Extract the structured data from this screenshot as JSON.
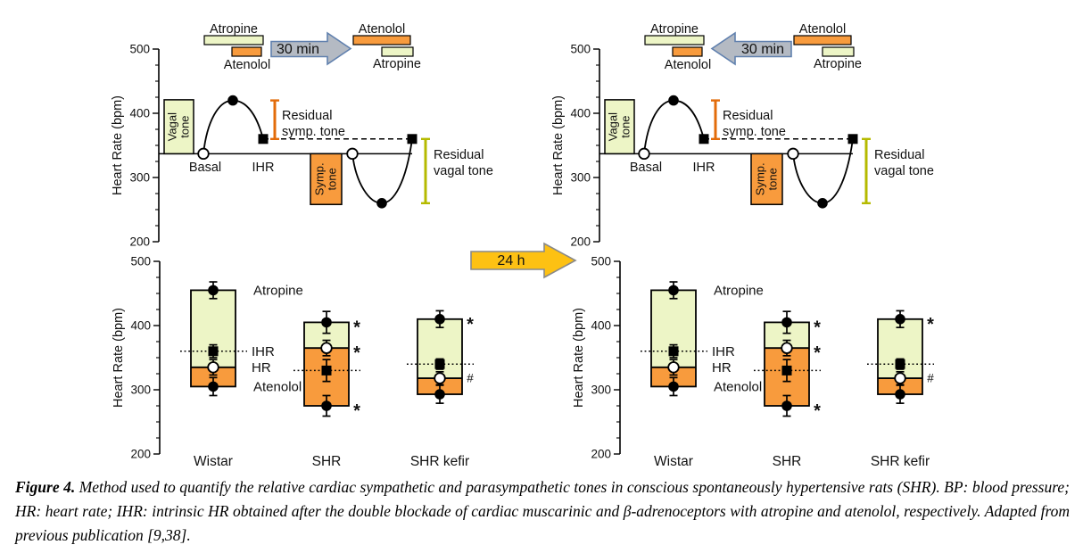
{
  "colors": {
    "atropine_fill": "#edf5c6",
    "atenolol_fill": "#f89b3d",
    "arrow_30min_fill": "#b4bac3",
    "arrow_30min_border": "#6080ae",
    "arrow_24h_fill": "#fdc113",
    "arrow_24h_border": "#898989",
    "residual_symp_bar": "#e36c0a",
    "residual_vagal_bar": "#b5ba00",
    "hash_mark": "#808080"
  },
  "arrow_24h": {
    "label": "24 h"
  },
  "caption": {
    "label": "Figure 4.",
    "text": "Method used to quantify the relative cardiac sympathetic and parasympathetic tones in conscious spontaneously hypertensive rats (SHR). BP: blood pressure; HR: heart rate; IHR: intrinsic HR obtained after the double blockade of cardiac muscarinic and β-adrenoceptors with atropine and atenolol, respectively. Adapted from previous publication [9,38]."
  },
  "chart_data": [
    {
      "panel": "top-left",
      "type": "protocol-diagram",
      "ylabel": "Heart Rate (bpm)",
      "ylim": [
        200,
        500
      ],
      "yticks": [
        200,
        300,
        400,
        500
      ],
      "ytick_minor_step": 25,
      "legend": {
        "before": {
          "top": {
            "label": "Atropine",
            "drug": "atropine"
          },
          "bottom": {
            "label": "Atenolol",
            "drug": "atenolol"
          }
        },
        "arrow": {
          "label": "30 min",
          "direction": "right"
        },
        "after": {
          "top": {
            "label": "Atenolol",
            "drug": "atenolol"
          },
          "bottom": {
            "label": "Atropine",
            "drug": "atropine"
          }
        }
      },
      "values": {
        "basal": 337,
        "atropine_peak": 420,
        "ihr": 360,
        "atenolol_trough": 260,
        "vagal_box_top": 421,
        "symp_box_bottom": 258
      },
      "annotations": {
        "vagal_box": "Vagal tone",
        "symp_box": "Symp. tone",
        "basal": "Basal",
        "ihr": "IHR",
        "residual_symp": [
          "Residual",
          "symp. tone"
        ],
        "residual_vagal": [
          "Residual",
          "vagal tone"
        ]
      }
    },
    {
      "panel": "top-right",
      "type": "protocol-diagram",
      "ylabel": "Heart Rate (bpm)",
      "ylim": [
        200,
        500
      ],
      "yticks": [
        200,
        300,
        400,
        500
      ],
      "ytick_minor_step": 25,
      "legend": {
        "before": {
          "top": {
            "label": "Atropine",
            "drug": "atropine"
          },
          "bottom": {
            "label": "Atenolol",
            "drug": "atenolol"
          }
        },
        "arrow": {
          "label": "30 min",
          "direction": "left"
        },
        "after": {
          "top": {
            "label": "Atenolol",
            "drug": "atenolol"
          },
          "bottom": {
            "label": "Atropine",
            "drug": "atropine"
          }
        }
      },
      "values": {
        "basal": 337,
        "atropine_peak": 420,
        "ihr": 360,
        "atenolol_trough": 260,
        "vagal_box_top": 421,
        "symp_box_bottom": 258
      },
      "annotations": {
        "vagal_box": "Vagal tone",
        "symp_box": "Symp. tone",
        "basal": "Basal",
        "ihr": "IHR",
        "residual_symp": [
          "Residual",
          "symp. tone"
        ],
        "residual_vagal": [
          "Residual",
          "vagal tone"
        ]
      }
    },
    {
      "panel": "bottom-left",
      "type": "range-bar",
      "ylabel": "Heart Rate (bpm)",
      "ylim": [
        200,
        500
      ],
      "yticks": [
        200,
        300,
        400,
        500
      ],
      "ytick_minor_step": 25,
      "categories": [
        "Wistar",
        "SHR",
        "SHR kefir"
      ],
      "series": {
        "atropine": {
          "label": "Atropine",
          "values": [
            455,
            405,
            410
          ],
          "errors": [
            13,
            17,
            13
          ],
          "marks": [
            "",
            "*",
            "*"
          ]
        },
        "ihr": {
          "label": "IHR",
          "values": [
            360,
            330,
            340
          ],
          "errors": [
            10,
            17,
            8
          ],
          "marks": [
            "",
            "",
            ""
          ]
        },
        "hr": {
          "label": "HR",
          "values": [
            335,
            365,
            318
          ],
          "errors": [
            12,
            12,
            10
          ],
          "marks": [
            "",
            "*",
            "#"
          ]
        },
        "atenolol": {
          "label": "Atenolol",
          "values": [
            305,
            275,
            293
          ],
          "errors": [
            14,
            16,
            14
          ],
          "marks": [
            "",
            "*",
            ""
          ]
        }
      }
    },
    {
      "panel": "bottom-right",
      "type": "range-bar",
      "ylabel": "Heart Rate (bpm)",
      "ylim": [
        200,
        500
      ],
      "yticks": [
        200,
        300,
        400,
        500
      ],
      "ytick_minor_step": 25,
      "categories": [
        "Wistar",
        "SHR",
        "SHR kefir"
      ],
      "series": {
        "atropine": {
          "label": "Atropine",
          "values": [
            455,
            405,
            410
          ],
          "errors": [
            13,
            17,
            13
          ],
          "marks": [
            "",
            "*",
            "*"
          ]
        },
        "ihr": {
          "label": "IHR",
          "values": [
            360,
            330,
            340
          ],
          "errors": [
            10,
            17,
            8
          ],
          "marks": [
            "",
            "",
            ""
          ]
        },
        "hr": {
          "label": "HR",
          "values": [
            335,
            365,
            318
          ],
          "errors": [
            12,
            12,
            10
          ],
          "marks": [
            "",
            "*",
            "#"
          ]
        },
        "atenolol": {
          "label": "Atenolol",
          "values": [
            305,
            275,
            293
          ],
          "errors": [
            14,
            16,
            14
          ],
          "marks": [
            "",
            "*",
            ""
          ]
        }
      }
    }
  ]
}
